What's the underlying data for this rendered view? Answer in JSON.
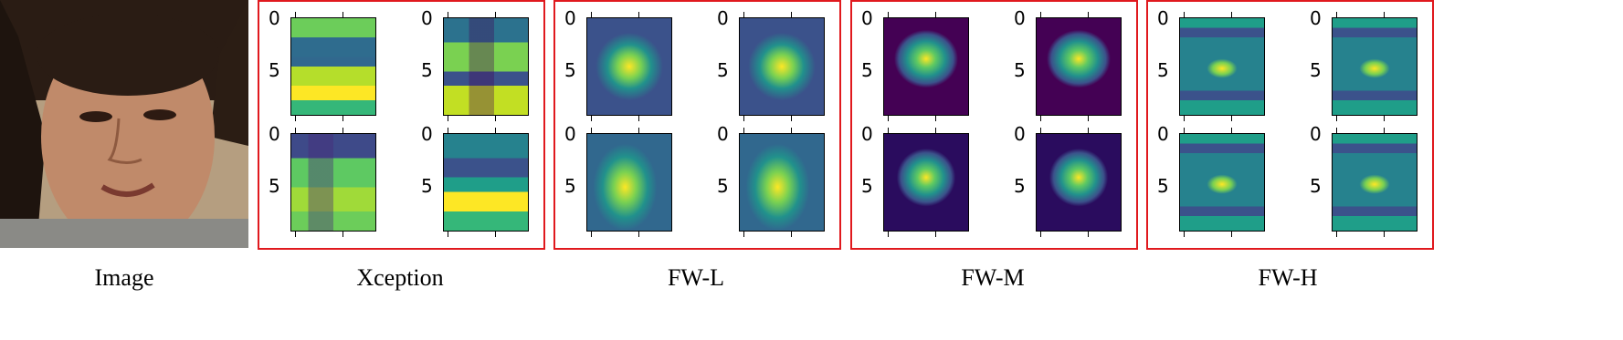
{
  "captions": [
    "Image",
    "Xception",
    "FW-L",
    "FW-M",
    "FW-H"
  ],
  "tick_labels": [
    "0",
    "5"
  ]
}
